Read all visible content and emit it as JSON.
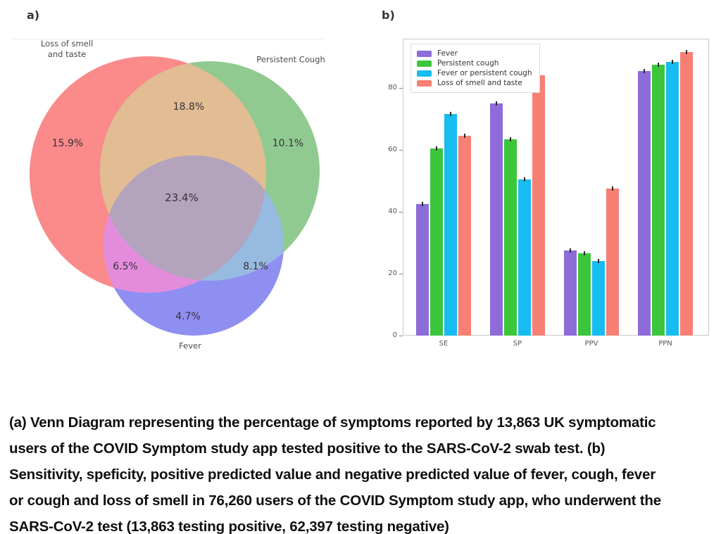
{
  "panel_a": {
    "label": "a)"
  },
  "panel_b": {
    "label": "b)"
  },
  "venn": {
    "set_names": {
      "loss_line1": "Loss of smell",
      "loss_line2": "and taste",
      "cough": "Persistent Cough",
      "fever": "Fever"
    },
    "regions": {
      "loss_only": "15.9%",
      "loss_cough": "18.8%",
      "cough_only": "10.1%",
      "all_three": "23.4%",
      "loss_fever": "6.5%",
      "cough_fever": "8.1%",
      "fever_only": "4.7%"
    },
    "colors": {
      "loss": "#FB8A8A",
      "cough": "#90CA90",
      "fever": "#8F8FF2",
      "loss_cough": "#E2BC93",
      "loss_fever": "#E48CDC",
      "cough_fever": "#96BAE0",
      "all": "#B3A3BC"
    }
  },
  "chart_data": {
    "type": "bar",
    "title": "",
    "xlabel": "",
    "ylabel": "",
    "categories": [
      "SE",
      "SP",
      "PPV",
      "PPN"
    ],
    "series": [
      {
        "name": "Fever",
        "color": "#8D6CD9",
        "values": [
          42.5,
          75.0,
          27.5,
          85.5
        ]
      },
      {
        "name": "Persistent cough",
        "color": "#3CC63C",
        "values": [
          60.5,
          63.5,
          26.5,
          87.5
        ]
      },
      {
        "name": "Fever or persistent cough",
        "color": "#17BCF0",
        "values": [
          71.5,
          50.5,
          24.0,
          88.5
        ]
      },
      {
        "name": "Loss of smell and taste",
        "color": "#F77F74",
        "values": [
          64.5,
          84.0,
          47.5,
          91.5
        ]
      }
    ],
    "yticks": [
      0,
      20,
      40,
      60,
      80
    ],
    "ylim": [
      0,
      96
    ],
    "grid": false,
    "error_bars": true,
    "legend_position": "upper left"
  },
  "caption": {
    "lines": [
      "(a) Venn Diagram representing the percentage of symptoms reported by 13,863 UK symptomatic",
      "users of the COVID Symptom study app tested positive to the SARS-CoV-2 swab test. (b)",
      "Sensitivity, speficity, positive predicted value and negative predicted value of fever, cough, fever",
      "or cough and loss of smell in 76,260 users of the COVID Symptom study app, who underwent the",
      "SARS-CoV-2 test (13,863 testing positive, 62,397 testing negative)"
    ]
  }
}
